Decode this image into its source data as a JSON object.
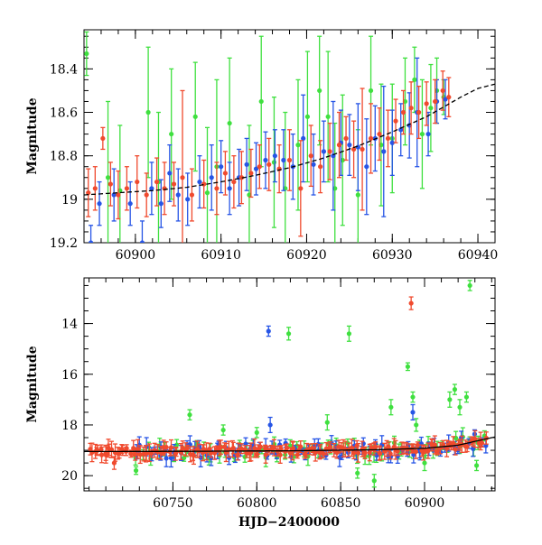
{
  "chart_data": [
    {
      "type": "scatter",
      "xlabel": "",
      "ylabel": "Magnitude",
      "xlim": [
        60894,
        60942
      ],
      "ylim": [
        19.2,
        18.22
      ],
      "y_inverted": true,
      "xticks": [
        60900,
        60910,
        60920,
        60930,
        60940
      ],
      "xtick_labels": [
        "60900",
        "60910",
        "60920",
        "60930",
        "60940"
      ],
      "yticks": [
        18.4,
        18.6,
        18.8,
        19.0,
        19.2
      ],
      "ytick_labels": [
        "18.4",
        "18.6",
        "18.8",
        "19",
        "19.2"
      ],
      "colors": {
        "red": "#f04a2e",
        "green": "#3fe03f",
        "blue": "#2755e6",
        "model": "#000000"
      },
      "model_curve": {
        "style": "line",
        "x": [
          60894,
          60898,
          60902,
          60906,
          60910,
          60914,
          60918,
          60922,
          60926,
          60930,
          60934,
          60938,
          60940,
          60942
        ],
        "y": [
          18.98,
          18.97,
          18.96,
          18.945,
          18.92,
          18.89,
          18.855,
          18.81,
          18.755,
          18.69,
          18.62,
          18.53,
          18.49,
          18.47
        ]
      },
      "series": [
        {
          "color": "red",
          "x": [
            60894.5,
            60895.3,
            60896.2,
            60897.1,
            60898.0,
            60899.0,
            60900.2,
            60901.3,
            60902.5,
            60903.4,
            60904.5,
            60905.5,
            60906.6,
            60908.0,
            60909.5,
            60910.5,
            60911.5,
            60912.4,
            60913.5,
            60914.5,
            60915.6,
            60916.8,
            60918.0,
            60919.3,
            60920.5,
            60921.6,
            60922.7,
            60923.8,
            60924.6,
            60925.5,
            60926.5,
            60927.5,
            60928.5,
            60929.5,
            60930.4,
            60931.3,
            60932.2,
            60933.1,
            60934.0,
            60935.0,
            60935.9,
            60936.6
          ],
          "y": [
            18.97,
            18.95,
            18.72,
            18.93,
            18.98,
            18.95,
            18.92,
            18.98,
            18.92,
            18.95,
            18.93,
            18.9,
            18.98,
            18.93,
            18.95,
            18.88,
            18.92,
            18.9,
            18.88,
            18.85,
            18.84,
            18.86,
            18.82,
            18.95,
            18.8,
            18.85,
            18.78,
            18.75,
            18.72,
            18.77,
            18.77,
            18.72,
            18.7,
            18.72,
            18.64,
            18.6,
            18.58,
            18.6,
            18.56,
            18.55,
            18.5,
            18.53
          ],
          "yerr": [
            0.11,
            0.1,
            0.05,
            0.1,
            0.11,
            0.1,
            0.12,
            0.1,
            0.11,
            0.12,
            0.1,
            0.4,
            0.12,
            0.11,
            0.12,
            0.1,
            0.12,
            0.12,
            0.11,
            0.1,
            0.12,
            0.11,
            0.14,
            0.22,
            0.14,
            0.12,
            0.13,
            0.15,
            0.1,
            0.13,
            0.28,
            0.16,
            0.12,
            0.13,
            0.1,
            0.1,
            0.12,
            0.12,
            0.1,
            0.1,
            0.09,
            0.09
          ]
        },
        {
          "color": "green",
          "x": [
            60894.3,
            60896.8,
            60898.2,
            60901.5,
            60902.7,
            60904.2,
            60907.0,
            60908.4,
            60909.5,
            60911.0,
            60913.3,
            60914.7,
            60916.2,
            60917.5,
            60919.0,
            60920.1,
            60921.5,
            60922.5,
            60923.3,
            60924.2,
            60926.0,
            60927.5,
            60928.7,
            60930.0,
            60931.5,
            60932.6,
            60933.5,
            60934.5,
            60935.2,
            60936.0
          ],
          "y": [
            18.33,
            18.9,
            18.96,
            18.6,
            18.92,
            18.7,
            18.62,
            18.97,
            18.85,
            18.65,
            18.98,
            18.55,
            18.83,
            18.95,
            18.75,
            18.62,
            18.5,
            18.62,
            18.95,
            18.82,
            18.98,
            18.5,
            18.75,
            18.72,
            18.55,
            18.45,
            18.7,
            18.58,
            18.5,
            18.53
          ],
          "yerr": [
            0.1,
            0.35,
            0.3,
            0.3,
            0.32,
            0.3,
            0.25,
            0.3,
            0.4,
            0.3,
            0.32,
            0.3,
            0.3,
            0.35,
            0.3,
            0.3,
            0.25,
            0.3,
            0.3,
            0.3,
            0.3,
            0.25,
            0.28,
            0.25,
            0.2,
            0.15,
            0.25,
            0.2,
            0.15,
            0.08
          ]
        },
        {
          "color": "blue",
          "x": [
            60894.8,
            60895.8,
            60897.5,
            60899.4,
            60900.8,
            60901.9,
            60903.0,
            60904.0,
            60905.0,
            60906.1,
            60907.5,
            60908.9,
            60910.0,
            60911.0,
            60912.1,
            60913.0,
            60914.1,
            60915.2,
            60916.3,
            60917.3,
            60918.4,
            60919.6,
            60920.8,
            60922.0,
            60923.1,
            60924.0,
            60925.0,
            60926.0,
            60927.0,
            60928.0,
            60929.0,
            60930.0,
            60931.0,
            60932.0,
            60932.9,
            60934.2,
            60935.2,
            60936.2
          ],
          "y": [
            19.2,
            19.02,
            18.98,
            19.02,
            19.2,
            18.95,
            19.02,
            18.88,
            18.98,
            19.0,
            18.92,
            18.9,
            18.85,
            18.95,
            18.9,
            18.84,
            18.86,
            18.82,
            18.8,
            18.82,
            18.85,
            18.72,
            18.84,
            18.78,
            18.8,
            18.74,
            18.75,
            18.76,
            18.85,
            18.72,
            18.78,
            18.74,
            18.68,
            18.66,
            18.6,
            18.7,
            18.55,
            18.54
          ],
          "yerr": [
            0.08,
            0.1,
            0.12,
            0.1,
            0.1,
            0.12,
            0.11,
            0.13,
            0.12,
            0.12,
            0.12,
            0.15,
            0.12,
            0.12,
            0.13,
            0.12,
            0.12,
            0.13,
            0.12,
            0.14,
            0.15,
            0.2,
            0.14,
            0.14,
            0.25,
            0.15,
            0.14,
            0.2,
            0.22,
            0.15,
            0.3,
            0.15,
            0.12,
            0.15,
            0.25,
            0.1,
            0.1,
            0.09
          ]
        }
      ]
    },
    {
      "type": "scatter",
      "xlabel": "HJD−2400000",
      "ylabel": "Magnitude",
      "xlim": [
        60697,
        60942
      ],
      "ylim": [
        20.6,
        12.2
      ],
      "y_inverted": true,
      "xticks": [
        60750,
        60800,
        60850,
        60900
      ],
      "xtick_labels": [
        "60750",
        "60800",
        "60850",
        "60900"
      ],
      "yticks": [
        14,
        16,
        18,
        20
      ],
      "ytick_labels": [
        "14",
        "16",
        "18",
        "20"
      ],
      "colors": {
        "red": "#f04a2e",
        "green": "#3fe03f",
        "blue": "#2755e6",
        "model": "#000000"
      },
      "model_curve": {
        "style": "line",
        "x": [
          60697,
          60760,
          60820,
          60870,
          60900,
          60920,
          60942
        ],
        "y": [
          19.05,
          19.04,
          19.02,
          18.98,
          18.92,
          18.8,
          18.47
        ]
      },
      "series": [
        {
          "color": "red",
          "trend": {
            "x_start": 60700,
            "x_end": 60937,
            "n": 160
          },
          "x": [
            60705,
            60710,
            60715,
            60720,
            60892
          ],
          "y": [
            19.0,
            19.1,
            19.5,
            19.0,
            13.2
          ],
          "yerr": [
            0.2,
            0.3,
            0.25,
            0.2,
            0.25
          ]
        },
        {
          "color": "green",
          "trend": {
            "x_start": 60727,
            "x_end": 60937,
            "n": 70
          },
          "x": [
            60728,
            60760,
            60780,
            60800,
            60819,
            60842,
            60855,
            60860,
            60870,
            60880,
            60890,
            60893,
            60895,
            60900,
            60915,
            60918,
            60921,
            60925,
            60927,
            60931
          ],
          "y": [
            19.8,
            17.6,
            18.2,
            18.3,
            14.4,
            17.9,
            14.4,
            19.9,
            20.2,
            17.3,
            15.7,
            16.9,
            18.0,
            19.5,
            17.0,
            16.6,
            17.3,
            16.9,
            12.5,
            19.6
          ],
          "yerr": [
            0.15,
            0.2,
            0.2,
            0.2,
            0.25,
            0.3,
            0.3,
            0.2,
            0.25,
            0.3,
            0.15,
            0.2,
            0.25,
            0.3,
            0.3,
            0.2,
            0.3,
            0.2,
            0.2,
            0.2
          ]
        },
        {
          "color": "blue",
          "trend": {
            "x_start": 60727,
            "x_end": 60937,
            "n": 80
          },
          "x": [
            60807,
            60808,
            60893,
            60897
          ],
          "y": [
            14.3,
            18.0,
            17.5,
            19.0
          ],
          "yerr": [
            0.2,
            0.3,
            0.3,
            0.3
          ]
        }
      ]
    }
  ]
}
